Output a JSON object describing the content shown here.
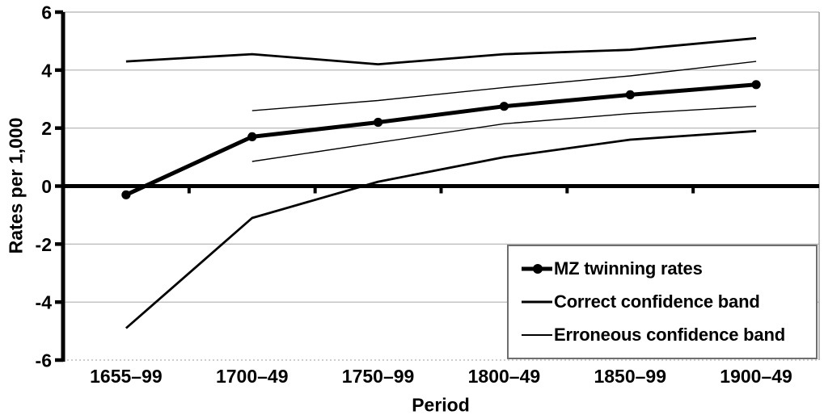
{
  "colors": {
    "series": "#000000",
    "grid": "#b0b0b0",
    "border": "#999999",
    "axis": "#000000",
    "background": "#ffffff",
    "legend_border": "#6e6e6e"
  },
  "chart_data": {
    "type": "line",
    "title": "",
    "xlabel": "Period",
    "ylabel": "Rates per 1,000",
    "categories": [
      "1655–99",
      "1700–49",
      "1750–99",
      "1800–49",
      "1850–99",
      "1900–49"
    ],
    "series": [
      {
        "name": "MZ twinning rates",
        "style": "thick",
        "marker": "circle",
        "values": [
          -0.3,
          1.7,
          2.2,
          2.75,
          3.15,
          3.5
        ]
      },
      {
        "name": "Correct confidence band (upper)",
        "style": "medium",
        "marker": "none",
        "values": [
          4.3,
          4.55,
          4.2,
          4.55,
          4.7,
          5.1
        ]
      },
      {
        "name": "Correct confidence band (lower)",
        "style": "medium",
        "marker": "none",
        "values": [
          -4.9,
          -1.1,
          0.15,
          1.0,
          1.6,
          1.9
        ]
      },
      {
        "name": "Erroneous confidence band (upper)",
        "style": "thin",
        "marker": "none",
        "values": [
          null,
          2.6,
          2.95,
          3.4,
          3.8,
          4.3
        ]
      },
      {
        "name": "Erroneous confidence band (lower)",
        "style": "thin",
        "marker": "none",
        "values": [
          null,
          0.85,
          1.5,
          2.15,
          2.5,
          2.75
        ]
      }
    ],
    "ylim": [
      -6,
      6
    ],
    "yticks": [
      6,
      4,
      2,
      0,
      -2,
      -4,
      -6
    ],
    "ytick_labels": [
      "6",
      "4",
      "2",
      "0",
      "-2",
      "-4",
      "-6"
    ],
    "grid": true,
    "legend_position": "inside-bottom-right",
    "legend": [
      {
        "label": "MZ twinning rates",
        "symbol": "thick-line-dot"
      },
      {
        "label": "Correct confidence band",
        "symbol": "medium-line"
      },
      {
        "label": "Erroneous confidence band",
        "symbol": "thin-line"
      }
    ]
  }
}
